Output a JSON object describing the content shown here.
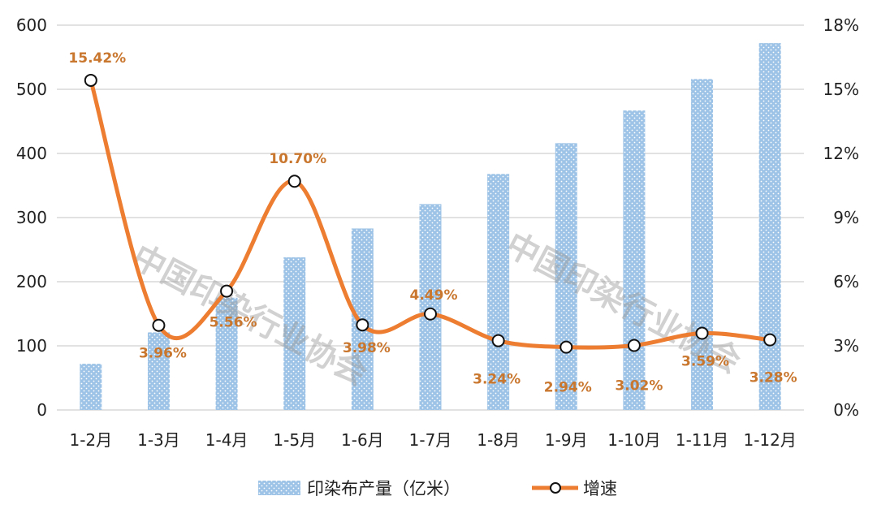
{
  "chart_data": {
    "type": "bar+line",
    "title": "",
    "categories": [
      "1-2月",
      "1-3月",
      "1-4月",
      "1-5月",
      "1-6月",
      "1-7月",
      "1-8月",
      "1-9月",
      "1-10月",
      "1-11月",
      "1-12月"
    ],
    "series": [
      {
        "name": "印染布产量（亿米）",
        "type": "bar",
        "axis": "left",
        "color": "#9dc3e6",
        "values": [
          72,
          121,
          175,
          238,
          283,
          321,
          368,
          416,
          467,
          516,
          572
        ]
      },
      {
        "name": "增速",
        "type": "line",
        "axis": "right",
        "color": "#ed7d31",
        "values": [
          15.42,
          3.96,
          5.56,
          10.7,
          3.98,
          4.49,
          3.24,
          2.94,
          3.02,
          3.59,
          3.28
        ],
        "labels": [
          "15.42%",
          "3.96%",
          "5.56%",
          "10.70%",
          "3.98%",
          "4.49%",
          "3.24%",
          "2.94%",
          "3.02%",
          "3.59%",
          "3.28%"
        ]
      }
    ],
    "y_left": {
      "ticks": [
        "0",
        "100",
        "200",
        "300",
        "400",
        "500",
        "600"
      ],
      "ylim": [
        0,
        600
      ]
    },
    "y_right": {
      "ticks": [
        "0%",
        "3%",
        "6%",
        "9%",
        "12%",
        "15%",
        "18%"
      ],
      "ylim": [
        0,
        18
      ]
    },
    "grid": true,
    "legend_position": "bottom",
    "watermark": "中国印染行业协会",
    "colors": {
      "bar": "#9dc3e6",
      "line": "#ed7d31",
      "label": "#c9772f",
      "grid": "#d9d9d9"
    }
  }
}
